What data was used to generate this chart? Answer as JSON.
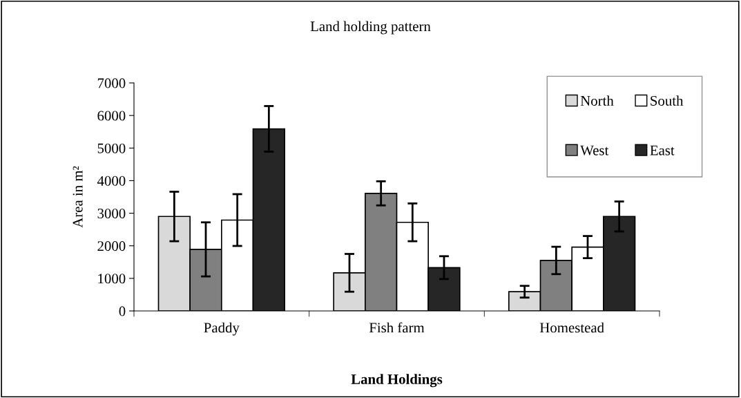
{
  "chart_data": {
    "type": "bar",
    "title": "Land holding pattern",
    "xlabel": "Land Holdings",
    "ylabel": "Area in m²",
    "categories": [
      "Paddy",
      "Fish farm",
      "Homestead"
    ],
    "series": [
      {
        "name": "North",
        "color": "#d9d9d9",
        "values": [
          2900,
          1170,
          590
        ],
        "errors": [
          760,
          580,
          180
        ]
      },
      {
        "name": "West",
        "color": "#808080",
        "values": [
          1890,
          3610,
          1550
        ],
        "errors": [
          830,
          370,
          420
        ]
      },
      {
        "name": "South",
        "color": "#ffffff",
        "values": [
          2790,
          2720,
          1960
        ],
        "errors": [
          795,
          580,
          340
        ]
      },
      {
        "name": "East",
        "color": "#262626",
        "values": [
          5590,
          1330,
          2900
        ],
        "errors": [
          700,
          350,
          460
        ]
      }
    ],
    "ylim": [
      0,
      7000
    ],
    "yticks": [
      0,
      1000,
      2000,
      3000,
      4000,
      5000,
      6000,
      7000
    ],
    "grid": false,
    "legend": "top right"
  }
}
